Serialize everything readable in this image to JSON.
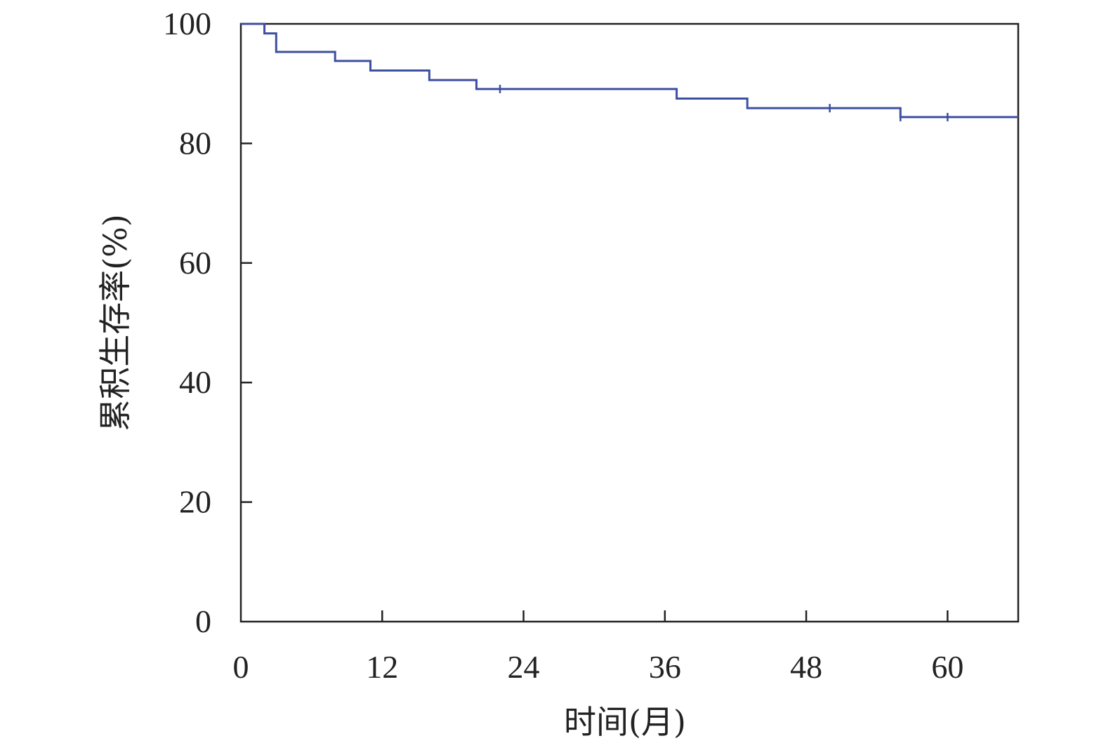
{
  "chart_data": {
    "type": "line",
    "step": true,
    "title": "",
    "xlabel": "时间(月)",
    "ylabel": "累积生存率(%)",
    "xlim": [
      0,
      66
    ],
    "ylim": [
      0,
      100
    ],
    "x_ticks": [
      0,
      12,
      24,
      36,
      48,
      60
    ],
    "y_ticks": [
      0,
      20,
      40,
      60,
      80,
      100
    ],
    "grid": false,
    "legend": "none",
    "series": [
      {
        "line_color": "#3d4fa1",
        "x": [
          0,
          2,
          3,
          8,
          11,
          16,
          20,
          37,
          43,
          56,
          66
        ],
        "y": [
          100,
          98.4,
          95.3,
          93.8,
          92.2,
          90.6,
          89.1,
          87.5,
          85.9,
          84.4,
          84.4
        ],
        "censored": [
          {
            "x": 22,
            "y": 89.1
          },
          {
            "x": 50,
            "y": 85.9
          },
          {
            "x": 56,
            "y": 84.4
          },
          {
            "x": 60,
            "y": 84.4
          }
        ]
      }
    ]
  }
}
